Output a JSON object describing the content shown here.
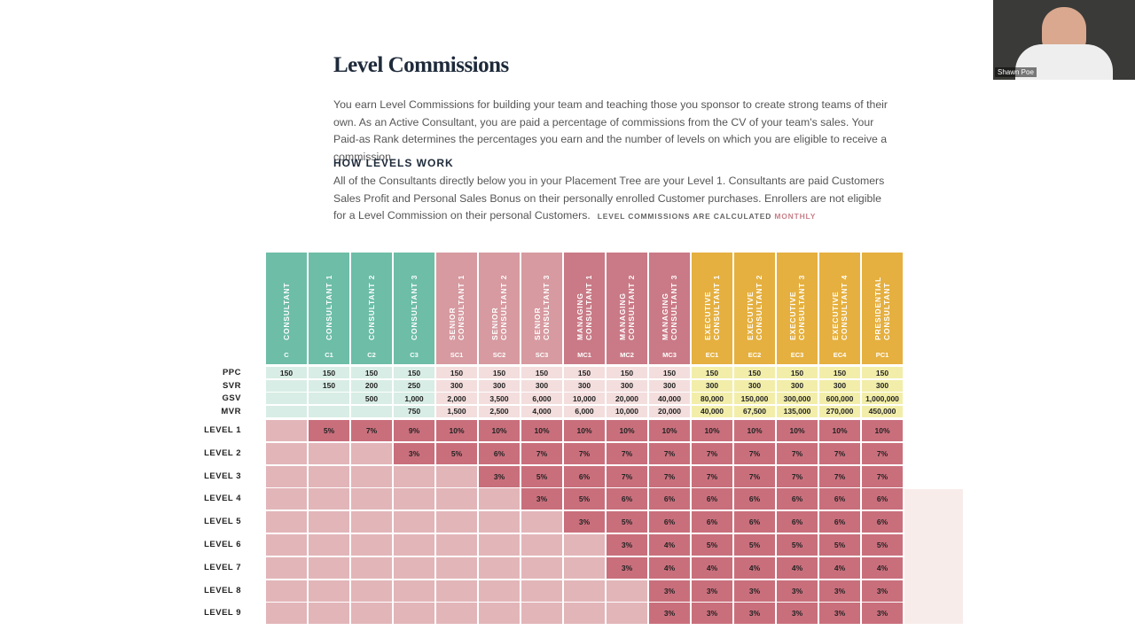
{
  "header": {
    "title": "Level Commissions",
    "intro": "You earn Level Commissions for building your team and teaching those you sponsor to create strong teams of their own. As an Active Consultant, you are paid a percentage of commissions from the CV of your team's sales. Your Paid-as Rank determines the percentages you earn and the number of levels on which you are eligible to receive a commission."
  },
  "section": {
    "heading": "HOW LEVELS WORK",
    "body": "All of the Consultants directly below you in your Placement Tree are your Level 1. Consultants are paid Customers Sales Profit and Personal Sales Bonus on their personally enrolled Customer purchases. Enrollers are not eligible for a Level Commission on their personal Customers.",
    "note_label": "LEVEL COMMISSIONS ARE CALCULATED",
    "note_emphasis": "MONTHLY"
  },
  "video": {
    "participant": "Shawn Poe"
  },
  "table": {
    "columns": [
      {
        "name": "CONSULTANT",
        "code": "C"
      },
      {
        "name": "CONSULTANT 1",
        "code": "C1"
      },
      {
        "name": "CONSULTANT 2",
        "code": "C2"
      },
      {
        "name": "CONSULTANT 3",
        "code": "C3"
      },
      {
        "name": "SENIOR CONSULTANT 1",
        "code": "SC1"
      },
      {
        "name": "SENIOR CONSULTANT 2",
        "code": "SC2"
      },
      {
        "name": "SENIOR CONSULTANT 3",
        "code": "SC3"
      },
      {
        "name": "MANAGING CONSULTANT 1",
        "code": "MC1"
      },
      {
        "name": "MANAGING CONSULTANT 2",
        "code": "MC2"
      },
      {
        "name": "MANAGING CONSULTANT 3",
        "code": "MC3"
      },
      {
        "name": "EXECUTIVE CONSULTANT 1",
        "code": "EC1"
      },
      {
        "name": "EXECUTIVE CONSULTANT 2",
        "code": "EC2"
      },
      {
        "name": "EXECUTIVE CONSULTANT 3",
        "code": "EC3"
      },
      {
        "name": "EXECUTIVE CONSULTANT 4",
        "code": "EC4"
      },
      {
        "name": "PRESIDENTIAL CONSULTANT",
        "code": "PC1"
      }
    ],
    "qualifications": [
      {
        "label": "PPC",
        "cells": [
          "150",
          "150",
          "150",
          "150",
          "150",
          "150",
          "150",
          "150",
          "150",
          "150",
          "150",
          "150",
          "150",
          "150",
          "150"
        ]
      },
      {
        "label": "SVR",
        "cells": [
          null,
          "150",
          "200",
          "250",
          "300",
          "300",
          "300",
          "300",
          "300",
          "300",
          "300",
          "300",
          "300",
          "300",
          "300"
        ]
      },
      {
        "label": "GSV",
        "cells": [
          null,
          null,
          "500",
          "1,000",
          "2,000",
          "3,500",
          "6,000",
          "10,000",
          "20,000",
          "40,000",
          "80,000",
          "150,000",
          "300,000",
          "600,000",
          "1,000,000"
        ]
      },
      {
        "label": "MVR",
        "cells": [
          null,
          null,
          null,
          "750",
          "1,500",
          "2,500",
          "4,000",
          "6,000",
          "10,000",
          "20,000",
          "40,000",
          "67,500",
          "135,000",
          "270,000",
          "450,000"
        ]
      }
    ],
    "levels": [
      {
        "label": "LEVEL 1",
        "cells": [
          null,
          "5%",
          "7%",
          "9%",
          "10%",
          "10%",
          "10%",
          "10%",
          "10%",
          "10%",
          "10%",
          "10%",
          "10%",
          "10%",
          "10%"
        ]
      },
      {
        "label": "LEVEL 2",
        "cells": [
          null,
          null,
          null,
          "3%",
          "5%",
          "6%",
          "7%",
          "7%",
          "7%",
          "7%",
          "7%",
          "7%",
          "7%",
          "7%",
          "7%"
        ]
      },
      {
        "label": "LEVEL 3",
        "cells": [
          null,
          null,
          null,
          null,
          null,
          "3%",
          "5%",
          "6%",
          "7%",
          "7%",
          "7%",
          "7%",
          "7%",
          "7%",
          "7%"
        ]
      },
      {
        "label": "LEVEL 4",
        "cells": [
          null,
          null,
          null,
          null,
          null,
          null,
          "3%",
          "5%",
          "6%",
          "6%",
          "6%",
          "6%",
          "6%",
          "6%",
          "6%"
        ]
      },
      {
        "label": "LEVEL 5",
        "cells": [
          null,
          null,
          null,
          null,
          null,
          null,
          null,
          "3%",
          "5%",
          "6%",
          "6%",
          "6%",
          "6%",
          "6%",
          "6%"
        ]
      },
      {
        "label": "LEVEL 6",
        "cells": [
          null,
          null,
          null,
          null,
          null,
          null,
          null,
          null,
          "3%",
          "4%",
          "5%",
          "5%",
          "5%",
          "5%",
          "5%"
        ]
      },
      {
        "label": "LEVEL 7",
        "cells": [
          null,
          null,
          null,
          null,
          null,
          null,
          null,
          null,
          "3%",
          "4%",
          "4%",
          "4%",
          "4%",
          "4%",
          "4%"
        ]
      },
      {
        "label": "LEVEL 8",
        "cells": [
          null,
          null,
          null,
          null,
          null,
          null,
          null,
          null,
          null,
          "3%",
          "3%",
          "3%",
          "3%",
          "3%",
          "3%"
        ]
      },
      {
        "label": "LEVEL 9",
        "cells": [
          null,
          null,
          null,
          null,
          null,
          null,
          null,
          null,
          null,
          "3%",
          "3%",
          "3%",
          "3%",
          "3%",
          "3%"
        ]
      }
    ]
  }
}
